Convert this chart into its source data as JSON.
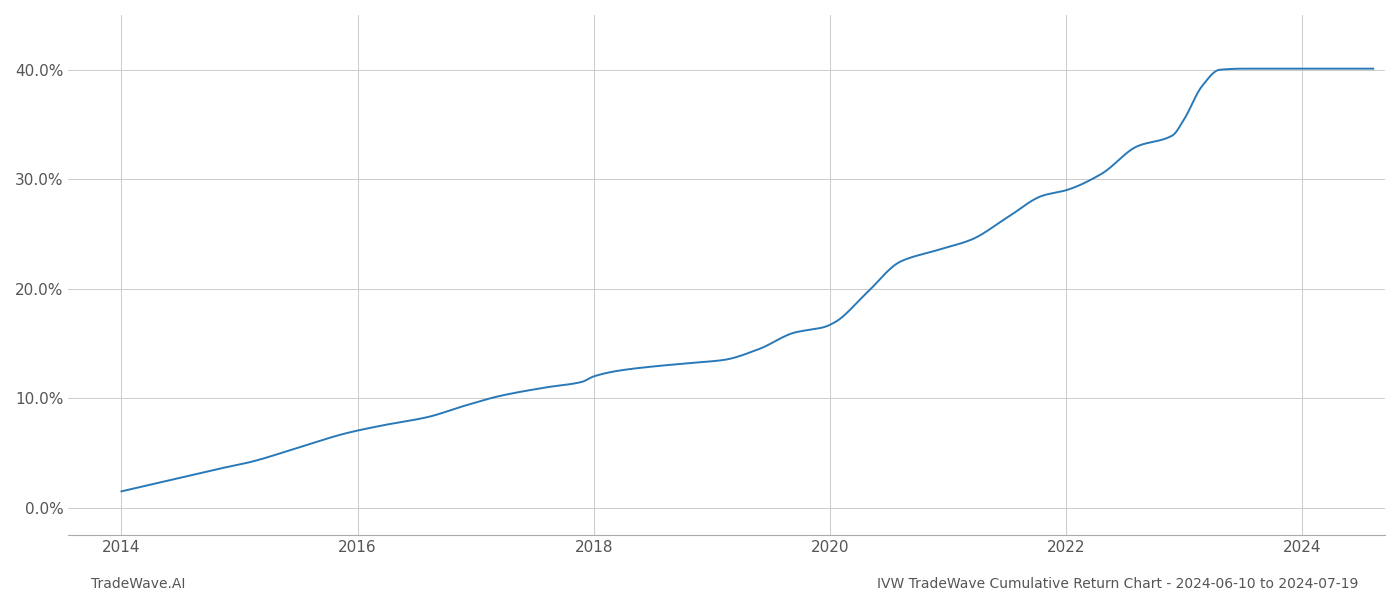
{
  "line_color": "#2979b8",
  "background_color": "#ffffff",
  "grid_color": "#cccccc",
  "x_ticks": [
    2014,
    2016,
    2018,
    2020,
    2022,
    2024
  ],
  "y_ticks": [
    0.0,
    10.0,
    20.0,
    30.0,
    40.0
  ],
  "xlim": [
    2013.55,
    2024.7
  ],
  "ylim": [
    -2.5,
    45.0
  ],
  "x_values": [
    2014.0,
    2014.4,
    2014.8,
    2015.1,
    2015.5,
    2015.9,
    2016.2,
    2016.6,
    2016.9,
    2017.2,
    2017.6,
    2017.9,
    2018.0,
    2018.2,
    2018.5,
    2018.8,
    2019.1,
    2019.4,
    2019.7,
    2019.95,
    2020.05,
    2020.3,
    2020.6,
    2020.9,
    2021.2,
    2021.5,
    2021.8,
    2022.0,
    2022.3,
    2022.6,
    2022.9,
    2023.0,
    2023.15,
    2023.3,
    2023.5,
    2023.8,
    2024.0,
    2024.3,
    2024.6
  ],
  "y_values": [
    1.5,
    2.5,
    3.5,
    4.2,
    5.5,
    6.8,
    7.5,
    8.3,
    9.3,
    10.2,
    11.0,
    11.5,
    12.0,
    12.5,
    12.9,
    13.2,
    13.5,
    14.5,
    16.0,
    16.5,
    17.0,
    19.5,
    22.5,
    23.5,
    24.5,
    26.5,
    28.5,
    29.0,
    30.5,
    33.0,
    34.0,
    35.5,
    38.5,
    40.0,
    40.1,
    40.1,
    40.1,
    40.1,
    40.1
  ],
  "footer_left": "TradeWave.AI",
  "footer_right": "IVW TradeWave Cumulative Return Chart - 2024-06-10 to 2024-07-19",
  "footer_fontsize": 10,
  "axis_label_color": "#555555",
  "tick_fontsize": 11
}
